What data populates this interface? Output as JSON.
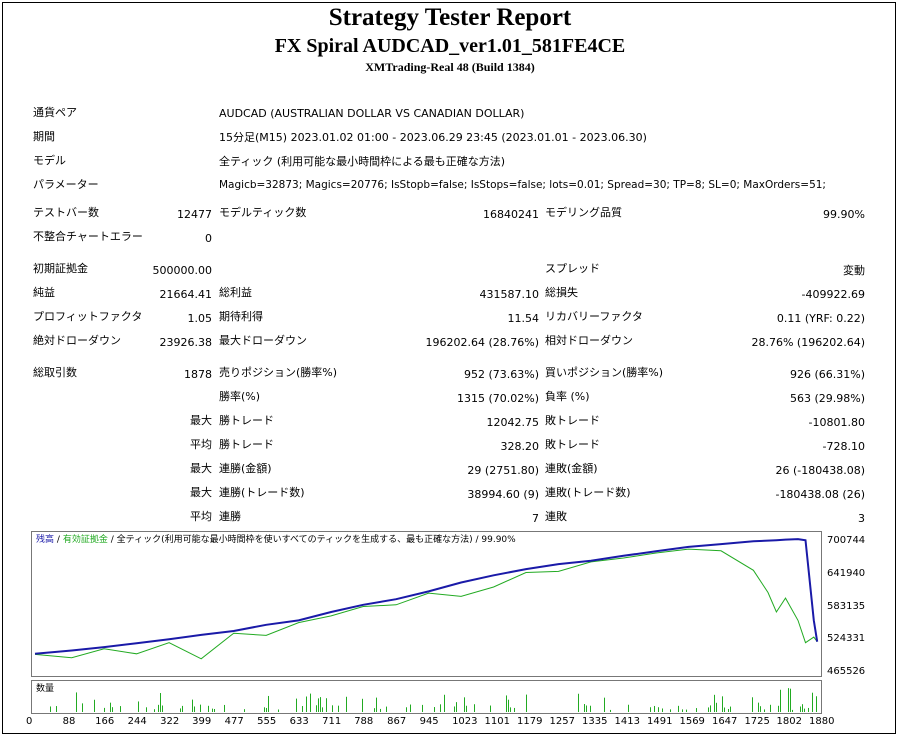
{
  "header": {
    "title": "Strategy Tester Report",
    "subtitle": "FX Spiral AUDCAD_ver1.01_581FE4CE",
    "server": "XMTrading-Real 48 (Build 1384)"
  },
  "info": {
    "pair_label": "通貨ペア",
    "pair_value": "AUDCAD (AUSTRALIAN DOLLAR VS CANADIAN DOLLAR)",
    "period_label": "期間",
    "period_value": "15分足(M15) 2023.01.02 01:00 - 2023.06.29 23:45 (2023.01.01 - 2023.06.30)",
    "model_label": "モデル",
    "model_value": "全ティック (利用可能な最小時間枠による最も正確な方法)",
    "params_label": "パラメーター",
    "params_value": "Magicb=32873; Magics=20776; IsStopb=false; IsStops=false; lots=0.01; Spread=30; TP=8; SL=0; MaxOrders=51;"
  },
  "stats": {
    "bars_label": "テストバー数",
    "bars_value": "12477",
    "ticks_label": "モデルティック数",
    "ticks_value": "16840241",
    "quality_label": "モデリング品質",
    "quality_value": "99.90%",
    "mismatch_label": "不整合チャートエラー",
    "mismatch_value": "0",
    "deposit_label": "初期証拠金",
    "deposit_value": "500000.00",
    "spread_label": "スプレッド",
    "spread_value": "変動",
    "net_label": "純益",
    "net_value": "21664.41",
    "gross_profit_label": "総利益",
    "gross_profit_value": "431587.10",
    "gross_loss_label": "総損失",
    "gross_loss_value": "-409922.69",
    "pf_label": "プロフィットファクタ",
    "pf_value": "1.05",
    "expected_label": "期待利得",
    "expected_value": "11.54",
    "recovery_label": "リカバリーファクタ",
    "recovery_value": "0.11 (YRF: 0.22)",
    "abs_dd_label": "絶対ドローダウン",
    "abs_dd_value": "23926.38",
    "max_dd_label": "最大ドローダウン",
    "max_dd_value": "196202.64 (28.76%)",
    "rel_dd_label": "相対ドローダウン",
    "rel_dd_value": "28.76% (196202.64)",
    "trades_label": "総取引数",
    "trades_value": "1878",
    "short_label": "売りポジション(勝率%)",
    "short_value": "952 (73.63%)",
    "long_label": "買いポジション(勝率%)",
    "long_value": "926 (66.31%)",
    "win_label": "勝率(%)",
    "win_value": "1315 (70.02%)",
    "loss_label": "負率 (%)",
    "loss_value": "563 (29.98%)",
    "max_word": "最大",
    "avg_word": "平均",
    "best_win_label": "勝トレード",
    "best_win_value": "12042.75",
    "worst_loss_label": "敗トレード",
    "worst_loss_value": "-10801.80",
    "avg_win_label": "勝トレード",
    "avg_win_value": "328.20",
    "avg_loss_label": "敗トレード",
    "avg_loss_value": "-728.10",
    "max_cons_wins_label": "連勝(金額)",
    "max_cons_wins_value": "29 (2751.80)",
    "max_cons_losses_label": "連敗(金額)",
    "max_cons_losses_value": "26 (-180438.08)",
    "max_cons_profit_label": "連勝(トレード数)",
    "max_cons_profit_value": "38994.60 (9)",
    "max_cons_loss_label": "連敗(トレード数)",
    "max_cons_loss_value": "-180438.08 (26)",
    "avg_cons_wins_label": "連勝",
    "avg_cons_wins_value": "7",
    "avg_cons_losses_label": "連敗",
    "avg_cons_losses_value": "3"
  },
  "chart": {
    "legend_balance": "残高",
    "legend_equity": "有効証拠金",
    "legend_rest": "全ティック(利用可能な最小時間枠を使いすべてのティックを生成する、最も正確な方法)",
    "legend_quality": "99.90%",
    "volume_label": "数量",
    "balance_color": "#1a1aa8",
    "equity_color": "#22aa22",
    "volume_color": "#22aa22"
  },
  "chart_data": {
    "type": "line",
    "x_ticks": [
      "0",
      "88",
      "166",
      "244",
      "322",
      "399",
      "477",
      "555",
      "633",
      "711",
      "788",
      "867",
      "945",
      "1023",
      "1101",
      "1179",
      "1257",
      "1335",
      "1413",
      "1491",
      "1569",
      "1647",
      "1725",
      "1802",
      "1880"
    ],
    "y_ticks": [
      "700744",
      "641940",
      "583135",
      "524331",
      "465526"
    ],
    "ylim": [
      465526,
      700744
    ],
    "xlim": [
      0,
      1880
    ],
    "series": [
      {
        "name": "残高",
        "x": [
          0,
          88,
          166,
          244,
          322,
          399,
          477,
          555,
          633,
          711,
          788,
          867,
          945,
          1023,
          1101,
          1179,
          1257,
          1335,
          1413,
          1491,
          1569,
          1647,
          1725,
          1780,
          1802,
          1832,
          1850,
          1870,
          1878
        ],
        "values": [
          500000,
          506000,
          512000,
          519000,
          526000,
          534000,
          541000,
          552000,
          560000,
          575000,
          588000,
          598000,
          612000,
          628000,
          641000,
          652000,
          661000,
          667000,
          676000,
          684000,
          692000,
          697000,
          702000,
          704000,
          705000,
          706000,
          704000,
          560000,
          521664
        ]
      },
      {
        "name": "有効証拠金",
        "x": [
          0,
          88,
          166,
          244,
          322,
          399,
          477,
          555,
          633,
          711,
          788,
          867,
          945,
          1023,
          1101,
          1179,
          1257,
          1335,
          1413,
          1491,
          1569,
          1647,
          1725,
          1760,
          1780,
          1802,
          1832,
          1850,
          1870,
          1878
        ],
        "values": [
          499000,
          493000,
          509000,
          500000,
          520000,
          491000,
          537000,
          533000,
          556000,
          568000,
          585000,
          588000,
          609000,
          603000,
          620000,
          646000,
          648000,
          665000,
          672000,
          681000,
          688000,
          685000,
          650000,
          610000,
          575000,
          600000,
          560000,
          520000,
          530000,
          521664
        ]
      }
    ],
    "volume": {
      "name": "数量"
    }
  }
}
